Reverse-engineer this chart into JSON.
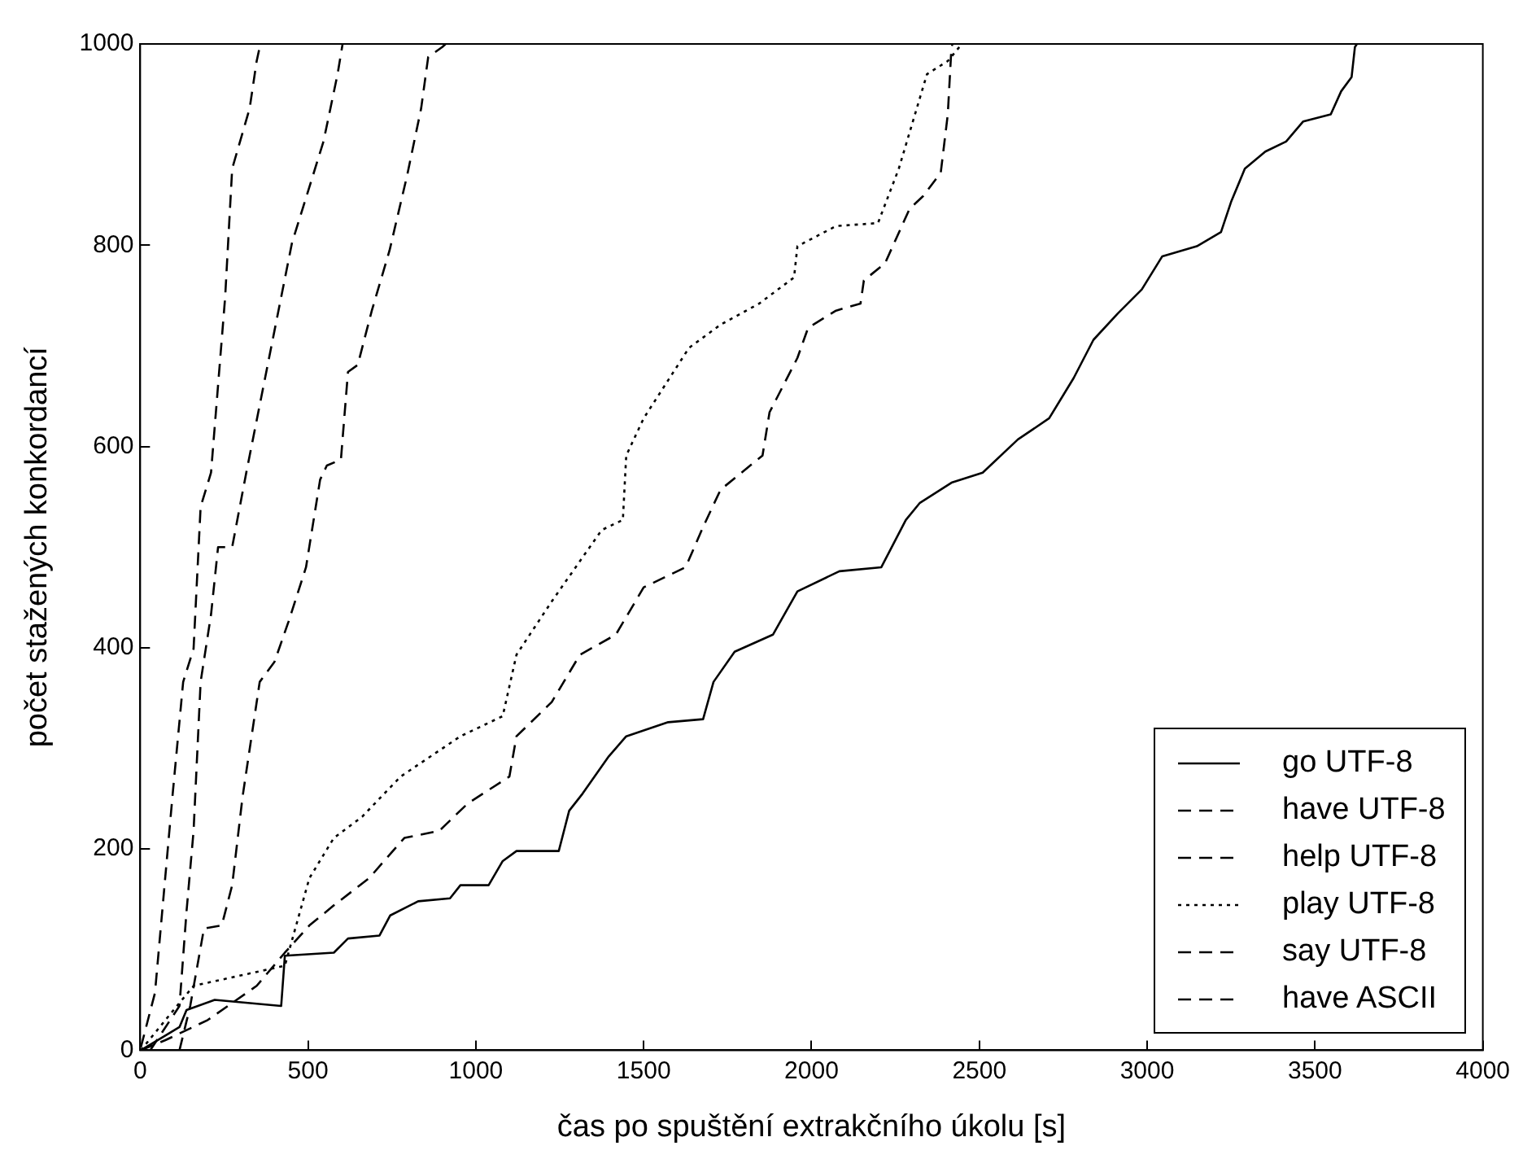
{
  "chart_data": {
    "type": "line",
    "xlabel": "čas po spuštění extrakčního úkolu [s]",
    "ylabel": "počet stažených konkordancí",
    "xlim": [
      0,
      4000
    ],
    "ylim": [
      0,
      1000
    ],
    "xticks": [
      0,
      500,
      1000,
      1500,
      2000,
      2500,
      3000,
      3500,
      4000
    ],
    "yticks": [
      0,
      200,
      400,
      600,
      800,
      1000
    ],
    "grid": false,
    "legend": "bottom right",
    "marker": "none",
    "series": [
      {
        "name": "go UTF-8",
        "color": "#000000",
        "line_style": "solid",
        "x": [
          2,
          117,
          138,
          222,
          420,
          431,
          577,
          619,
          713,
          745,
          828,
          923,
          954,
          1038,
          1080,
          1121,
          1247,
          1278,
          1318,
          1396,
          1448,
          1573,
          1677,
          1708,
          1771,
          1885,
          1958,
          2083,
          2208,
          2281,
          2323,
          2417,
          2510,
          2615,
          2708,
          2781,
          2840,
          2912,
          2984,
          3045,
          3148,
          3220,
          3250,
          3291,
          3352,
          3414,
          3465,
          3547,
          3578,
          3609,
          3619,
          3625
        ],
        "values": [
          0,
          23,
          40,
          50,
          44,
          94,
          97,
          111,
          114,
          134,
          148,
          151,
          164,
          164,
          188,
          198,
          198,
          238,
          255,
          292,
          312,
          326,
          329,
          366,
          396,
          413,
          456,
          476,
          480,
          527,
          544,
          564,
          574,
          607,
          628,
          668,
          706,
          732,
          756,
          789,
          799,
          813,
          843,
          876,
          893,
          903,
          923,
          930,
          953,
          967,
          997,
          1000
        ]
      },
      {
        "name": "have UTF-8",
        "color": "#000000",
        "line_style": "dashed",
        "x": [
          30,
          117,
          138,
          159,
          180,
          211,
          232,
          274,
          316,
          400,
          452,
          546,
          588,
          603
        ],
        "values": [
          0,
          44,
          138,
          218,
          366,
          433,
          500,
          500,
          574,
          715,
          802,
          903,
          970,
          1000
        ]
      },
      {
        "name": "help UTF-8",
        "color": "#000000",
        "line_style": "dashed",
        "x": [
          2,
          75,
          201,
          347,
          431,
          504,
          577,
          682,
          787,
          891,
          975,
          1100,
          1121,
          1226,
          1310,
          1417,
          1500,
          1625,
          1677,
          1729,
          1854,
          1875,
          1958,
          1990,
          2073,
          2146,
          2156,
          2219,
          2292,
          2333,
          2385,
          2406,
          2417,
          2420
        ],
        "values": [
          0,
          10,
          30,
          64,
          97,
          124,
          144,
          171,
          211,
          218,
          245,
          272,
          312,
          346,
          393,
          413,
          460,
          480,
          520,
          557,
          591,
          634,
          688,
          718,
          735,
          742,
          765,
          782,
          836,
          849,
          872,
          930,
          997,
          1000
        ]
      },
      {
        "name": "play UTF-8",
        "color": "#000000",
        "line_style": "dotted",
        "x": [
          2,
          75,
          159,
          431,
          504,
          577,
          661,
          776,
          954,
          1080,
          1121,
          1226,
          1375,
          1438,
          1448,
          1500,
          1635,
          1729,
          1844,
          1948,
          1958,
          2073,
          2198,
          2260,
          2344,
          2406,
          2448
        ],
        "values": [
          0,
          30,
          64,
          84,
          171,
          211,
          232,
          272,
          312,
          332,
          393,
          446,
          517,
          527,
          591,
          628,
          698,
          721,
          742,
          768,
          799,
          819,
          822,
          876,
          970,
          983,
          1000
        ]
      },
      {
        "name": "say UTF-8",
        "color": "#000000",
        "line_style": "dashed",
        "x": [
          117,
          149,
          190,
          243,
          274,
          305,
          356,
          400,
          442,
          494,
          536,
          556,
          598,
          619,
          648,
          690,
          743,
          795,
          837,
          858,
          900,
          910
        ],
        "values": [
          0,
          44,
          121,
          124,
          164,
          252,
          366,
          386,
          426,
          480,
          567,
          581,
          587,
          674,
          681,
          735,
          795,
          869,
          936,
          987,
          997,
          1000
        ]
      },
      {
        "name": "have ASCII",
        "color": "#000000",
        "line_style": "dashed",
        "x": [
          2,
          44,
          96,
          128,
          159,
          180,
          211,
          232,
          253,
          274,
          326,
          347,
          358
        ],
        "values": [
          3,
          57,
          252,
          366,
          399,
          540,
          574,
          661,
          748,
          876,
          936,
          983,
          1000
        ]
      }
    ]
  }
}
